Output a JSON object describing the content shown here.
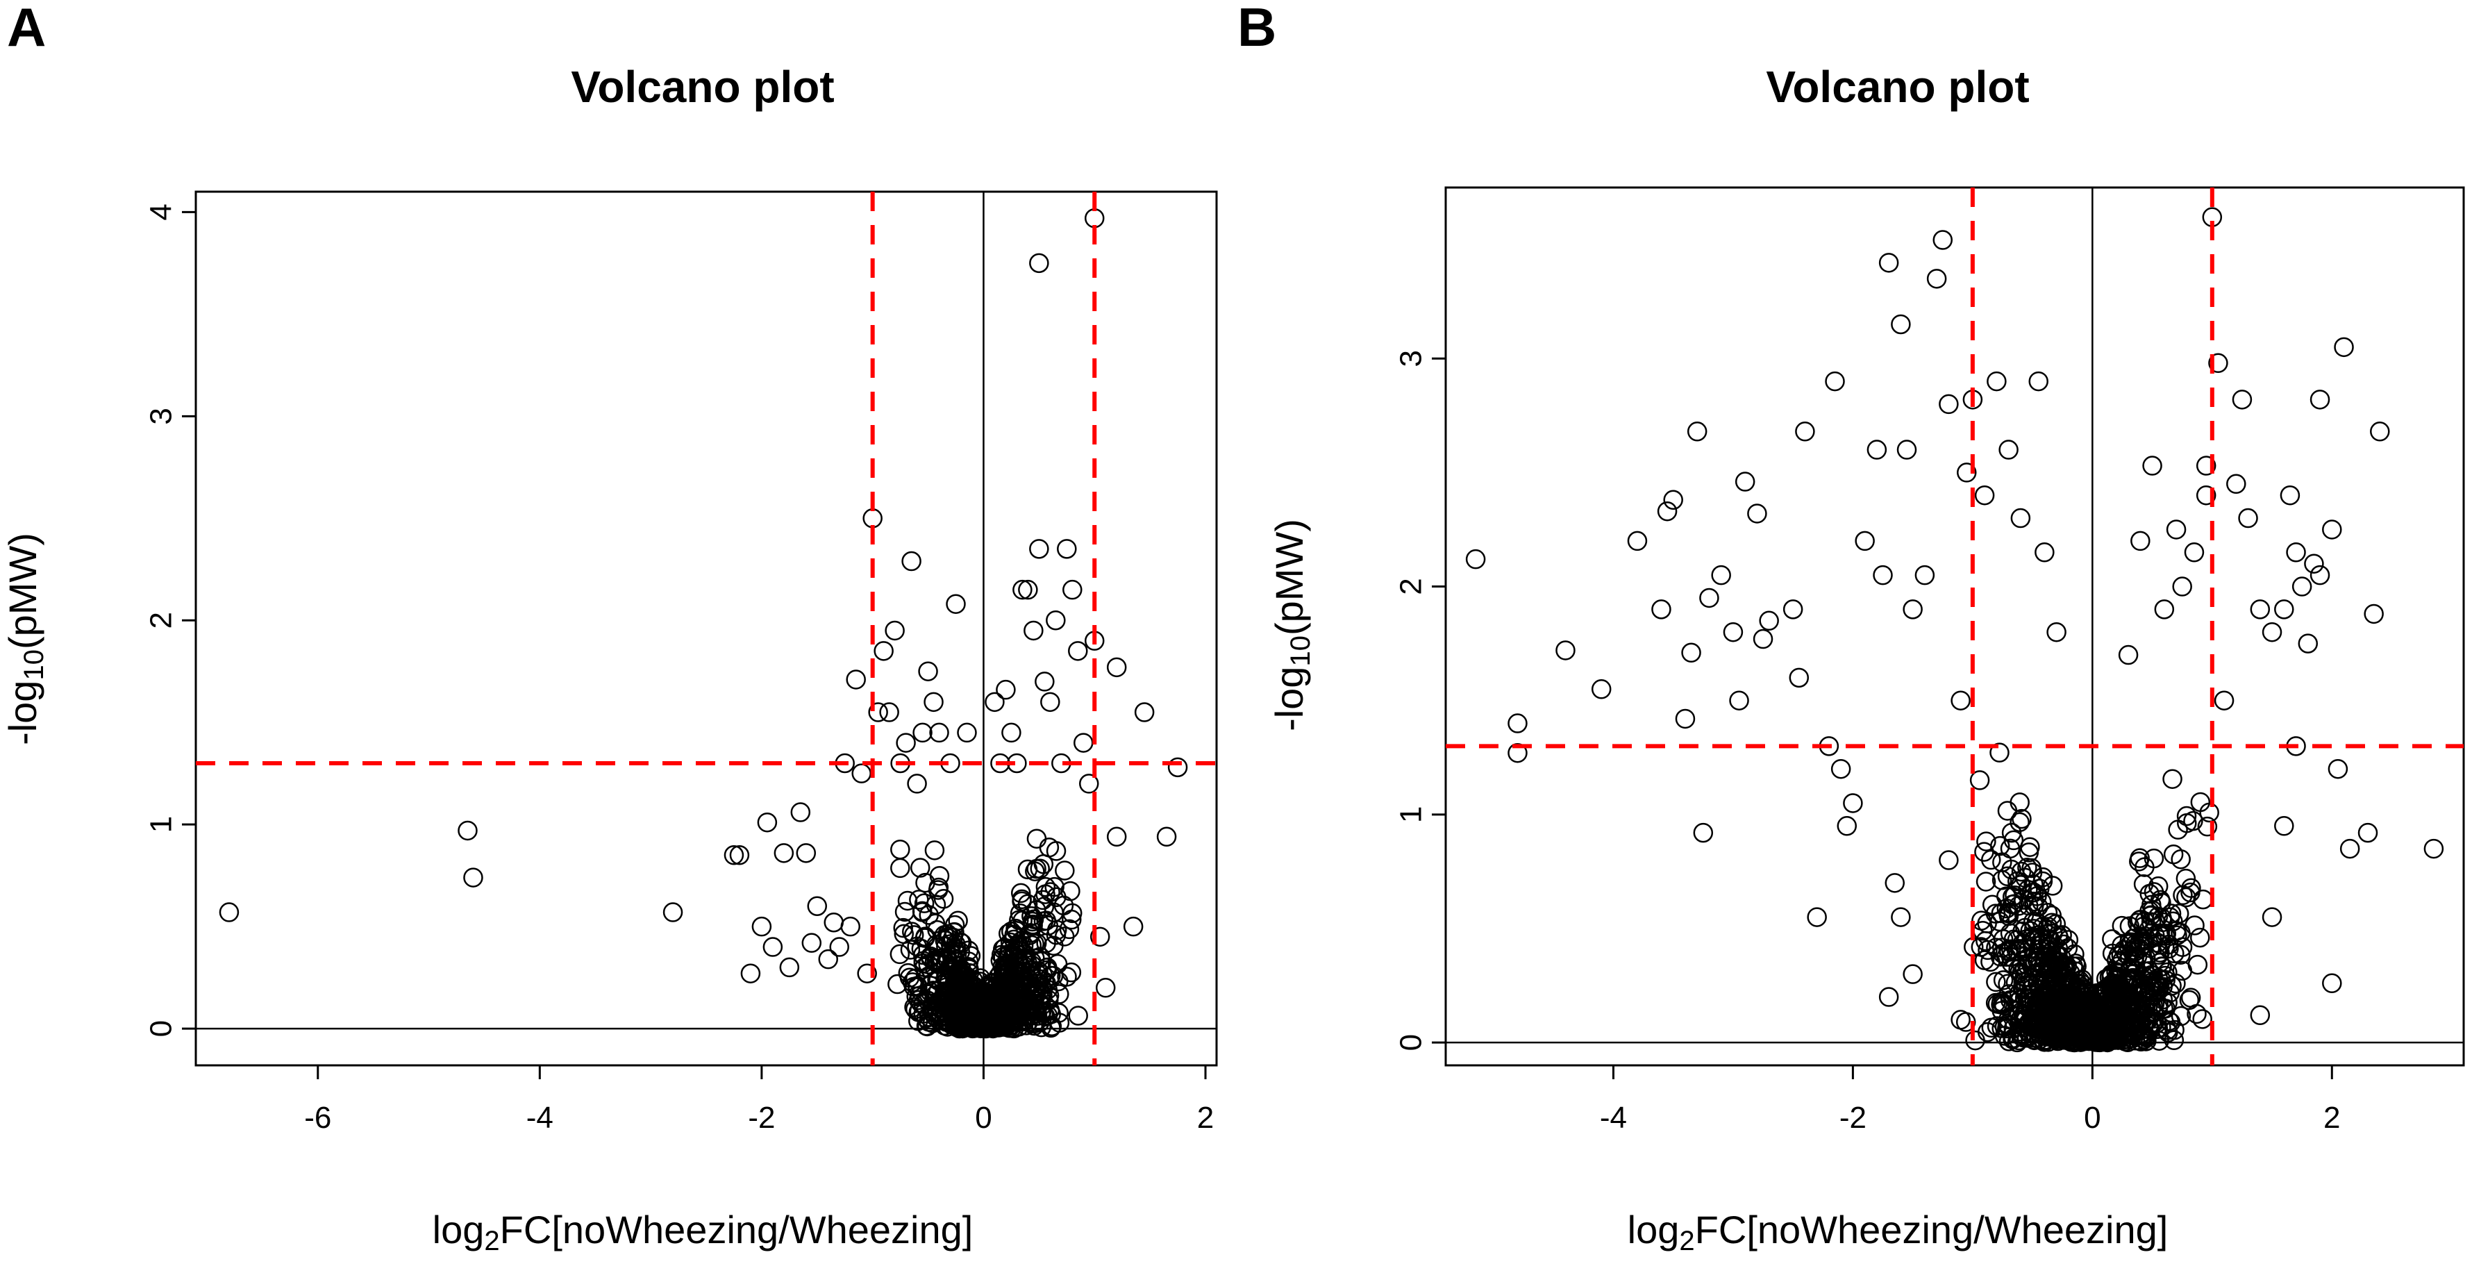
{
  "panels": {
    "A": {
      "letter": "A",
      "title": "Volcano plot",
      "xlabel_main": "log",
      "xlabel_sub": "2",
      "xlabel_rest": "FC[noWheezing/Wheezing]",
      "ylabel_pre": "-log",
      "ylabel_sub": "10",
      "ylabel_rest": "(pMW)"
    },
    "B": {
      "letter": "B",
      "title": "Volcano plot",
      "xlabel_main": "log",
      "xlabel_sub": "2",
      "xlabel_rest": "FC[noWheezing/Wheezing]",
      "ylabel_pre": "-log",
      "ylabel_sub": "10",
      "ylabel_rest": "(pMW)"
    }
  },
  "chart_data": [
    {
      "type": "scatter",
      "panel": "A",
      "title": "Volcano plot",
      "xlabel": "log2FC[noWheezing/Wheezing]",
      "ylabel": "-log10(pMW)",
      "xlim": [
        -7.1,
        2.1
      ],
      "ylim": [
        -0.18,
        4.1
      ],
      "xticks": [
        -6,
        -4,
        -2,
        0,
        2
      ],
      "yticks": [
        0,
        1,
        2,
        3,
        4
      ],
      "threshold_lines": {
        "vertical_dashed": [
          -1,
          1
        ],
        "horizontal_dashed": [
          1.3
        ],
        "vertical_solid": [
          0
        ],
        "horizontal_solid": [
          0
        ]
      },
      "colors": {
        "points": "#000000",
        "threshold": "#ff0000"
      },
      "points": [
        [
          -6.8,
          0.57
        ],
        [
          -4.65,
          0.97
        ],
        [
          -4.6,
          0.74
        ],
        [
          -2.8,
          0.57
        ],
        [
          -2.25,
          0.85
        ],
        [
          -2.2,
          0.85
        ],
        [
          -2.1,
          0.27
        ],
        [
          -2.0,
          0.5
        ],
        [
          -1.95,
          1.01
        ],
        [
          -1.9,
          0.4
        ],
        [
          -1.8,
          0.86
        ],
        [
          -1.75,
          0.3
        ],
        [
          -1.65,
          1.06
        ],
        [
          -1.6,
          0.86
        ],
        [
          -1.55,
          0.42
        ],
        [
          -1.5,
          0.6
        ],
        [
          -1.4,
          0.34
        ],
        [
          -1.35,
          0.52
        ],
        [
          -1.3,
          0.4
        ],
        [
          -1.25,
          1.3
        ],
        [
          -1.2,
          0.5
        ],
        [
          -1.15,
          1.71
        ],
        [
          -1.1,
          1.25
        ],
        [
          -1.05,
          0.27
        ],
        [
          -1.0,
          2.5
        ],
        [
          -0.95,
          1.55
        ],
        [
          -0.9,
          1.85
        ],
        [
          -0.85,
          1.55
        ],
        [
          -0.8,
          1.95
        ],
        [
          -0.75,
          1.3
        ],
        [
          -0.7,
          1.4
        ],
        [
          -0.65,
          2.29
        ],
        [
          -0.6,
          1.2
        ],
        [
          -0.55,
          1.45
        ],
        [
          -0.5,
          1.75
        ],
        [
          -0.45,
          1.6
        ],
        [
          -0.4,
          1.45
        ],
        [
          -0.3,
          1.3
        ],
        [
          -0.25,
          2.08
        ],
        [
          -0.15,
          1.45
        ],
        [
          0.1,
          1.6
        ],
        [
          0.15,
          1.3
        ],
        [
          0.2,
          1.66
        ],
        [
          0.25,
          1.45
        ],
        [
          0.3,
          1.3
        ],
        [
          0.35,
          2.15
        ],
        [
          0.4,
          2.15
        ],
        [
          0.45,
          1.95
        ],
        [
          0.5,
          2.35
        ],
        [
          0.5,
          3.75
        ],
        [
          0.55,
          1.7
        ],
        [
          0.6,
          1.6
        ],
        [
          0.65,
          2.0
        ],
        [
          0.7,
          1.3
        ],
        [
          0.75,
          2.35
        ],
        [
          0.8,
          2.15
        ],
        [
          0.85,
          1.85
        ],
        [
          0.9,
          1.4
        ],
        [
          0.95,
          1.2
        ],
        [
          1.0,
          3.97
        ],
        [
          1.0,
          1.9
        ],
        [
          1.05,
          0.45
        ],
        [
          1.1,
          0.2
        ],
        [
          1.2,
          1.77
        ],
        [
          1.2,
          0.94
        ],
        [
          1.35,
          0.5
        ],
        [
          1.45,
          1.55
        ],
        [
          1.65,
          0.94
        ],
        [
          1.75,
          1.28
        ]
      ],
      "dense_cluster": {
        "x_range": [
          -0.9,
          0.95
        ],
        "y_range": [
          0,
          1.4
        ],
        "approx_count": 900
      }
    },
    {
      "type": "scatter",
      "panel": "B",
      "title": "Volcano plot",
      "xlabel": "log2FC[noWheezing/Wheezing]",
      "ylabel": "-log10(pMW)",
      "xlim": [
        -5.4,
        3.1
      ],
      "ylim": [
        -0.1,
        3.75
      ],
      "xticks": [
        -4,
        -2,
        0,
        2
      ],
      "yticks": [
        0,
        1,
        2,
        3
      ],
      "threshold_lines": {
        "vertical_dashed": [
          -1,
          1
        ],
        "horizontal_dashed": [
          1.3
        ],
        "vertical_solid": [
          0
        ],
        "horizontal_solid": [
          0
        ]
      },
      "colors": {
        "points": "#000000",
        "threshold": "#ff0000"
      },
      "points": [
        [
          -5.15,
          2.12
        ],
        [
          -4.8,
          1.4
        ],
        [
          -4.8,
          1.27
        ],
        [
          -4.4,
          1.72
        ],
        [
          -4.1,
          1.55
        ],
        [
          -3.8,
          2.2
        ],
        [
          -3.6,
          1.9
        ],
        [
          -3.5,
          2.38
        ],
        [
          -3.55,
          2.33
        ],
        [
          -3.4,
          1.42
        ],
        [
          -3.35,
          1.71
        ],
        [
          -3.3,
          2.68
        ],
        [
          -3.25,
          0.92
        ],
        [
          -3.2,
          1.95
        ],
        [
          -3.1,
          2.05
        ],
        [
          -3.0,
          1.8
        ],
        [
          -2.95,
          1.5
        ],
        [
          -2.9,
          2.46
        ],
        [
          -2.8,
          2.32
        ],
        [
          -2.75,
          1.77
        ],
        [
          -2.7,
          1.85
        ],
        [
          -2.5,
          1.9
        ],
        [
          -2.45,
          1.6
        ],
        [
          -2.4,
          2.68
        ],
        [
          -2.3,
          0.55
        ],
        [
          -2.2,
          1.3
        ],
        [
          -2.15,
          2.9
        ],
        [
          -2.1,
          1.2
        ],
        [
          -2.05,
          0.95
        ],
        [
          -2.0,
          1.05
        ],
        [
          -1.9,
          2.2
        ],
        [
          -1.8,
          2.6
        ],
        [
          -1.75,
          2.05
        ],
        [
          -1.7,
          3.42
        ],
        [
          -1.65,
          0.7
        ],
        [
          -1.6,
          3.15
        ],
        [
          -1.55,
          2.6
        ],
        [
          -1.5,
          1.9
        ],
        [
          -1.4,
          2.05
        ],
        [
          -1.3,
          3.35
        ],
        [
          -1.2,
          2.8
        ],
        [
          -1.25,
          3.52
        ],
        [
          -1.1,
          1.5
        ],
        [
          -1.05,
          2.5
        ],
        [
          -1.0,
          2.82
        ],
        [
          -0.9,
          2.4
        ],
        [
          -0.8,
          2.9
        ],
        [
          -0.7,
          2.6
        ],
        [
          -0.6,
          2.3
        ],
        [
          -0.45,
          2.9
        ],
        [
          -0.4,
          2.15
        ],
        [
          -0.3,
          1.8
        ],
        [
          -0.2,
          0.45
        ],
        [
          -1.5,
          0.3
        ],
        [
          -1.6,
          0.55
        ],
        [
          -1.7,
          0.2
        ],
        [
          -1.1,
          0.1
        ],
        [
          -1.2,
          0.8
        ],
        [
          0.3,
          1.7
        ],
        [
          0.4,
          2.2
        ],
        [
          0.5,
          2.53
        ],
        [
          0.6,
          1.9
        ],
        [
          0.7,
          2.25
        ],
        [
          0.75,
          2.0
        ],
        [
          0.85,
          2.15
        ],
        [
          0.95,
          2.4
        ],
        [
          0.95,
          2.53
        ],
        [
          1.0,
          3.62
        ],
        [
          1.05,
          2.98
        ],
        [
          1.1,
          1.5
        ],
        [
          1.2,
          2.45
        ],
        [
          1.25,
          2.82
        ],
        [
          1.3,
          2.3
        ],
        [
          1.4,
          1.9
        ],
        [
          1.5,
          1.8
        ],
        [
          1.6,
          1.9
        ],
        [
          1.65,
          2.4
        ],
        [
          1.7,
          2.15
        ],
        [
          1.75,
          2.0
        ],
        [
          1.8,
          1.75
        ],
        [
          1.85,
          2.1
        ],
        [
          1.9,
          2.05
        ],
        [
          2.0,
          2.25
        ],
        [
          2.0,
          0.26
        ],
        [
          2.05,
          1.2
        ],
        [
          2.1,
          3.05
        ],
        [
          2.15,
          0.85
        ],
        [
          2.3,
          0.92
        ],
        [
          2.35,
          1.88
        ],
        [
          2.4,
          2.68
        ],
        [
          2.85,
          0.85
        ],
        [
          1.4,
          0.12
        ],
        [
          1.5,
          0.55
        ],
        [
          1.6,
          0.95
        ],
        [
          1.7,
          1.3
        ],
        [
          1.9,
          2.82
        ]
      ],
      "dense_cluster": {
        "x_range": [
          -1.2,
          1.1
        ],
        "y_range": [
          0,
          1.6
        ],
        "approx_count": 1200
      }
    }
  ]
}
